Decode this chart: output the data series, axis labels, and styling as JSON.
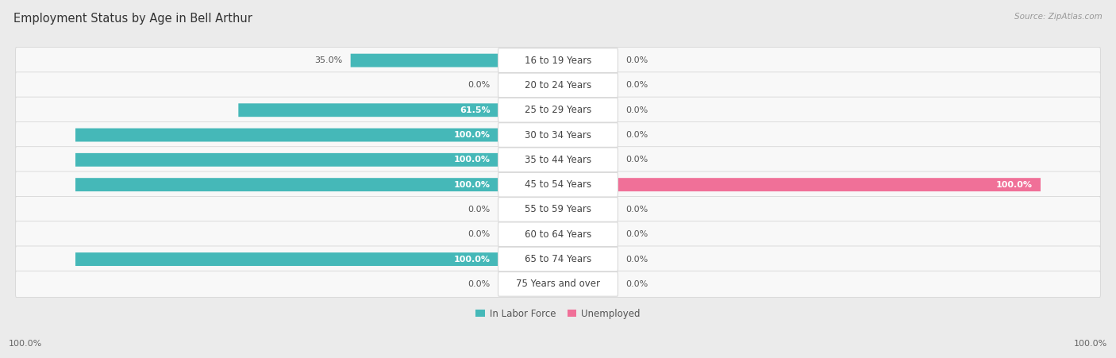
{
  "title": "Employment Status by Age in Bell Arthur",
  "source": "Source: ZipAtlas.com",
  "categories": [
    "16 to 19 Years",
    "20 to 24 Years",
    "25 to 29 Years",
    "30 to 34 Years",
    "35 to 44 Years",
    "45 to 54 Years",
    "55 to 59 Years",
    "60 to 64 Years",
    "65 to 74 Years",
    "75 Years and over"
  ],
  "in_labor_force": [
    35.0,
    0.0,
    61.5,
    100.0,
    100.0,
    100.0,
    0.0,
    0.0,
    100.0,
    0.0
  ],
  "unemployed": [
    0.0,
    0.0,
    0.0,
    0.0,
    0.0,
    100.0,
    0.0,
    0.0,
    0.0,
    0.0
  ],
  "labor_force_color": "#45b8b8",
  "labor_force_color_light": "#80d0d0",
  "unemployed_color": "#f07098",
  "unemployed_color_light": "#f0a8c0",
  "background_color": "#ebebeb",
  "row_bg_color": "#f8f8f8",
  "row_stripe_color": "#e8e8e8",
  "title_fontsize": 10.5,
  "label_fontsize": 8.0,
  "cat_fontsize": 8.5,
  "legend_fontsize": 8.5,
  "axis_label_fontsize": 8.0,
  "max_value": 100.0
}
